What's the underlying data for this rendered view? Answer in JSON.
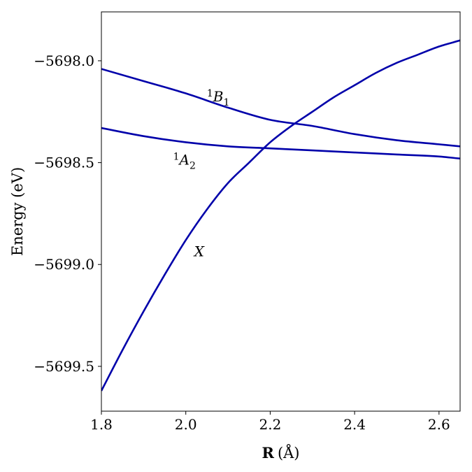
{
  "chart_data": {
    "type": "line",
    "xlabel_bold": "R",
    "xlabel_unit": "(Å)",
    "ylabel": "Energy (eV)",
    "xlim": [
      1.8,
      2.65
    ],
    "ylim": [
      -5699.72,
      -5697.76
    ],
    "x_ticks": [
      {
        "value": 1.8,
        "label": "1.8"
      },
      {
        "value": 2.0,
        "label": "2.0"
      },
      {
        "value": 2.2,
        "label": "2.2"
      },
      {
        "value": 2.4,
        "label": "2.4"
      },
      {
        "value": 2.6,
        "label": "2.6"
      }
    ],
    "y_ticks": [
      {
        "value": -5698.0,
        "label": "−5698.0"
      },
      {
        "value": -5698.5,
        "label": "−5698.5"
      },
      {
        "value": -5699.0,
        "label": "−5699.0"
      },
      {
        "value": -5699.5,
        "label": "−5699.5"
      }
    ],
    "grid": false,
    "line_color": "#0000aa",
    "series": [
      {
        "name": "X",
        "label_parts": {
          "sup": "",
          "main": "X",
          "sub": ""
        },
        "label_at": {
          "x": 2.02,
          "y": -5698.96
        },
        "x": [
          1.8,
          1.85,
          1.9,
          1.95,
          2.0,
          2.05,
          2.1,
          2.15,
          2.2,
          2.25,
          2.3,
          2.35,
          2.4,
          2.45,
          2.5,
          2.55,
          2.6,
          2.65
        ],
        "y": [
          -5699.62,
          -5699.42,
          -5699.23,
          -5699.05,
          -5698.88,
          -5698.73,
          -5698.6,
          -5698.5,
          -5698.4,
          -5698.32,
          -5698.25,
          -5698.18,
          -5698.12,
          -5698.06,
          -5698.01,
          -5697.97,
          -5697.93,
          -5697.9
        ]
      },
      {
        "name": "1B1",
        "label_parts": {
          "sup": "1",
          "main": "B",
          "sub": "1"
        },
        "label_at": {
          "x": 2.05,
          "y": -5698.2
        },
        "x": [
          1.8,
          1.9,
          2.0,
          2.1,
          2.2,
          2.3,
          2.4,
          2.5,
          2.6,
          2.65
        ],
        "y": [
          -5698.04,
          -5698.1,
          -5698.16,
          -5698.23,
          -5698.29,
          -5698.32,
          -5698.36,
          -5698.39,
          -5698.41,
          -5698.42
        ]
      },
      {
        "name": "1A2",
        "label_parts": {
          "sup": "1",
          "main": "A",
          "sub": "2"
        },
        "label_at": {
          "x": 1.97,
          "y": -5698.51
        },
        "x": [
          1.8,
          1.9,
          2.0,
          2.1,
          2.2,
          2.3,
          2.4,
          2.5,
          2.6,
          2.65
        ],
        "y": [
          -5698.33,
          -5698.37,
          -5698.4,
          -5698.42,
          -5698.43,
          -5698.44,
          -5698.45,
          -5698.46,
          -5698.47,
          -5698.48
        ]
      }
    ]
  }
}
